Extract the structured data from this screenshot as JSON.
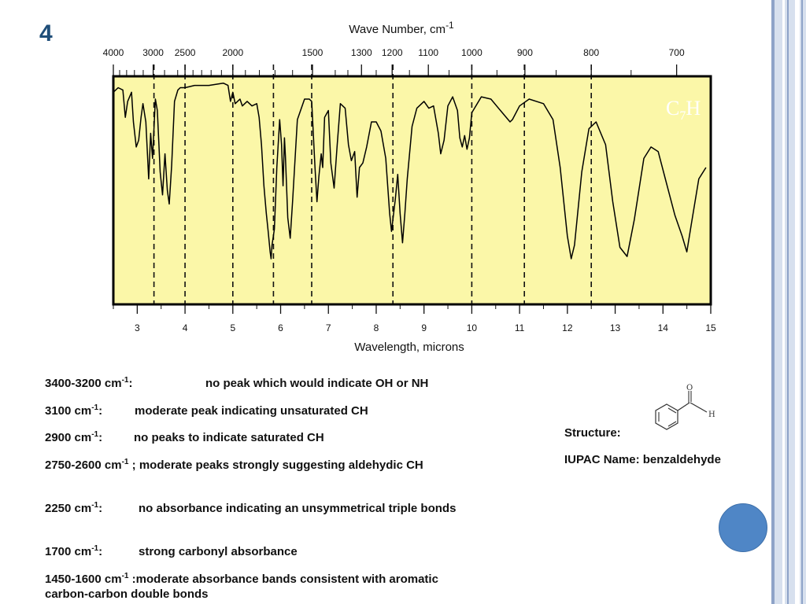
{
  "slide": {
    "number": "4"
  },
  "chart_data": {
    "type": "line",
    "title": "",
    "top_axis_label": "Wave Number, cm-1",
    "bottom_axis_label": "Wavelength, microns",
    "top_ticks": [
      "4000",
      "3000",
      "2500",
      "2000",
      "1500",
      "1300",
      "1200",
      "1100",
      "1000",
      "900",
      "800",
      "700"
    ],
    "bottom_ticks": [
      "3",
      "4",
      "5",
      "6",
      "7",
      "8",
      "9",
      "10",
      "11",
      "12",
      "13",
      "14",
      "15"
    ],
    "xlim_microns": [
      2.5,
      15
    ],
    "formula_fragment": "C7H",
    "background_color": "#fbf7a8",
    "dashed_marker_microns": [
      3.35,
      4,
      5,
      5.85,
      6.65,
      8.35,
      10,
      11.1,
      12.5
    ],
    "transmittance_trace": [
      [
        2.5,
        0.93
      ],
      [
        2.6,
        0.95
      ],
      [
        2.7,
        0.94
      ],
      [
        2.75,
        0.82
      ],
      [
        2.8,
        0.89
      ],
      [
        2.88,
        0.93
      ],
      [
        2.92,
        0.8
      ],
      [
        2.98,
        0.69
      ],
      [
        3.03,
        0.72
      ],
      [
        3.08,
        0.82
      ],
      [
        3.12,
        0.88
      ],
      [
        3.18,
        0.8
      ],
      [
        3.24,
        0.55
      ],
      [
        3.28,
        0.75
      ],
      [
        3.32,
        0.64
      ],
      [
        3.38,
        0.9
      ],
      [
        3.42,
        0.85
      ],
      [
        3.48,
        0.58
      ],
      [
        3.53,
        0.48
      ],
      [
        3.58,
        0.66
      ],
      [
        3.63,
        0.5
      ],
      [
        3.67,
        0.44
      ],
      [
        3.72,
        0.61
      ],
      [
        3.78,
        0.89
      ],
      [
        3.85,
        0.94
      ],
      [
        3.9,
        0.95
      ],
      [
        4.0,
        0.95
      ],
      [
        4.2,
        0.96
      ],
      [
        4.5,
        0.96
      ],
      [
        4.8,
        0.97
      ],
      [
        4.9,
        0.96
      ],
      [
        4.95,
        0.89
      ],
      [
        5.0,
        0.93
      ],
      [
        5.05,
        0.88
      ],
      [
        5.15,
        0.9
      ],
      [
        5.2,
        0.87
      ],
      [
        5.3,
        0.89
      ],
      [
        5.4,
        0.87
      ],
      [
        5.5,
        0.88
      ],
      [
        5.55,
        0.82
      ],
      [
        5.6,
        0.7
      ],
      [
        5.65,
        0.52
      ],
      [
        5.7,
        0.4
      ],
      [
        5.74,
        0.32
      ],
      [
        5.78,
        0.23
      ],
      [
        5.8,
        0.2
      ],
      [
        5.82,
        0.26
      ],
      [
        5.87,
        0.33
      ],
      [
        5.92,
        0.6
      ],
      [
        5.98,
        0.81
      ],
      [
        6.02,
        0.7
      ],
      [
        6.05,
        0.52
      ],
      [
        6.08,
        0.73
      ],
      [
        6.1,
        0.65
      ],
      [
        6.15,
        0.38
      ],
      [
        6.2,
        0.29
      ],
      [
        6.25,
        0.45
      ],
      [
        6.35,
        0.81
      ],
      [
        6.5,
        0.9
      ],
      [
        6.6,
        0.9
      ],
      [
        6.65,
        0.89
      ],
      [
        6.72,
        0.6
      ],
      [
        6.76,
        0.45
      ],
      [
        6.8,
        0.56
      ],
      [
        6.85,
        0.66
      ],
      [
        6.88,
        0.6
      ],
      [
        6.92,
        0.82
      ],
      [
        7.0,
        0.85
      ],
      [
        7.05,
        0.62
      ],
      [
        7.12,
        0.51
      ],
      [
        7.18,
        0.69
      ],
      [
        7.25,
        0.88
      ],
      [
        7.35,
        0.86
      ],
      [
        7.42,
        0.7
      ],
      [
        7.48,
        0.63
      ],
      [
        7.55,
        0.67
      ],
      [
        7.6,
        0.47
      ],
      [
        7.65,
        0.6
      ],
      [
        7.72,
        0.62
      ],
      [
        7.8,
        0.69
      ],
      [
        7.9,
        0.8
      ],
      [
        8.0,
        0.8
      ],
      [
        8.1,
        0.76
      ],
      [
        8.2,
        0.64
      ],
      [
        8.28,
        0.4
      ],
      [
        8.32,
        0.32
      ],
      [
        8.4,
        0.46
      ],
      [
        8.45,
        0.57
      ],
      [
        8.5,
        0.4
      ],
      [
        8.55,
        0.27
      ],
      [
        8.6,
        0.4
      ],
      [
        8.65,
        0.55
      ],
      [
        8.75,
        0.78
      ],
      [
        8.85,
        0.86
      ],
      [
        9.0,
        0.89
      ],
      [
        9.1,
        0.86
      ],
      [
        9.2,
        0.87
      ],
      [
        9.3,
        0.75
      ],
      [
        9.35,
        0.66
      ],
      [
        9.42,
        0.72
      ],
      [
        9.5,
        0.87
      ],
      [
        9.6,
        0.91
      ],
      [
        9.7,
        0.85
      ],
      [
        9.75,
        0.73
      ],
      [
        9.8,
        0.69
      ],
      [
        9.85,
        0.74
      ],
      [
        9.9,
        0.68
      ],
      [
        9.95,
        0.73
      ],
      [
        10.0,
        0.84
      ],
      [
        10.2,
        0.91
      ],
      [
        10.4,
        0.9
      ],
      [
        10.6,
        0.85
      ],
      [
        10.8,
        0.8
      ],
      [
        10.85,
        0.81
      ],
      [
        11.0,
        0.87
      ],
      [
        11.2,
        0.9
      ],
      [
        11.5,
        0.88
      ],
      [
        11.7,
        0.81
      ],
      [
        11.85,
        0.6
      ],
      [
        12.0,
        0.3
      ],
      [
        12.08,
        0.2
      ],
      [
        12.15,
        0.26
      ],
      [
        12.3,
        0.58
      ],
      [
        12.45,
        0.77
      ],
      [
        12.6,
        0.8
      ],
      [
        12.8,
        0.7
      ],
      [
        12.95,
        0.45
      ],
      [
        13.1,
        0.25
      ],
      [
        13.25,
        0.21
      ],
      [
        13.4,
        0.37
      ],
      [
        13.6,
        0.64
      ],
      [
        13.75,
        0.69
      ],
      [
        13.9,
        0.67
      ],
      [
        14.05,
        0.55
      ],
      [
        14.25,
        0.39
      ],
      [
        14.4,
        0.3
      ],
      [
        14.5,
        0.23
      ],
      [
        14.6,
        0.36
      ],
      [
        14.75,
        0.55
      ],
      [
        14.9,
        0.6
      ]
    ]
  },
  "notes": [
    {
      "label": "3400-3200 cm",
      "sup": "-1",
      "suffix": ":",
      "text": "no peak which would indicate OH or NH"
    },
    {
      "label": "3100 cm",
      "sup": "-1",
      "suffix": ":",
      "text": "moderate peak indicating unsaturated CH"
    },
    {
      "label": "2900 cm",
      "sup": "-1",
      "suffix": ":",
      "text": "no peaks to indicate saturated CH"
    },
    {
      "label": "2750-2600 cm",
      "sup": "-1",
      "suffix": " ;",
      "text": "moderate peaks strongly suggesting aldehydic CH"
    },
    {
      "label": "2250 cm",
      "sup": "-1",
      "suffix": ":",
      "text": "no absorbance indicating an unsymmetrical triple bonds"
    },
    {
      "label": "1700 cm",
      "sup": "-1",
      "suffix": ":",
      "text": "strong carbonyl absorbance"
    },
    {
      "label": "1450-1600 cm",
      "sup": "-1",
      "suffix": " :",
      "text": "moderate absorbance bands consistent with aromatic",
      "text2": "carbon-carbon double bonds"
    }
  ],
  "structure": {
    "label": "Structure:",
    "atom_o": "O",
    "atom_h": "H",
    "iupac_label": "IUPAC Name: benzaldehyde"
  },
  "theme": {
    "accent": "#4f86c6",
    "chart_bg": "#fbf7a8",
    "slide_number_color": "#1f4e79"
  }
}
